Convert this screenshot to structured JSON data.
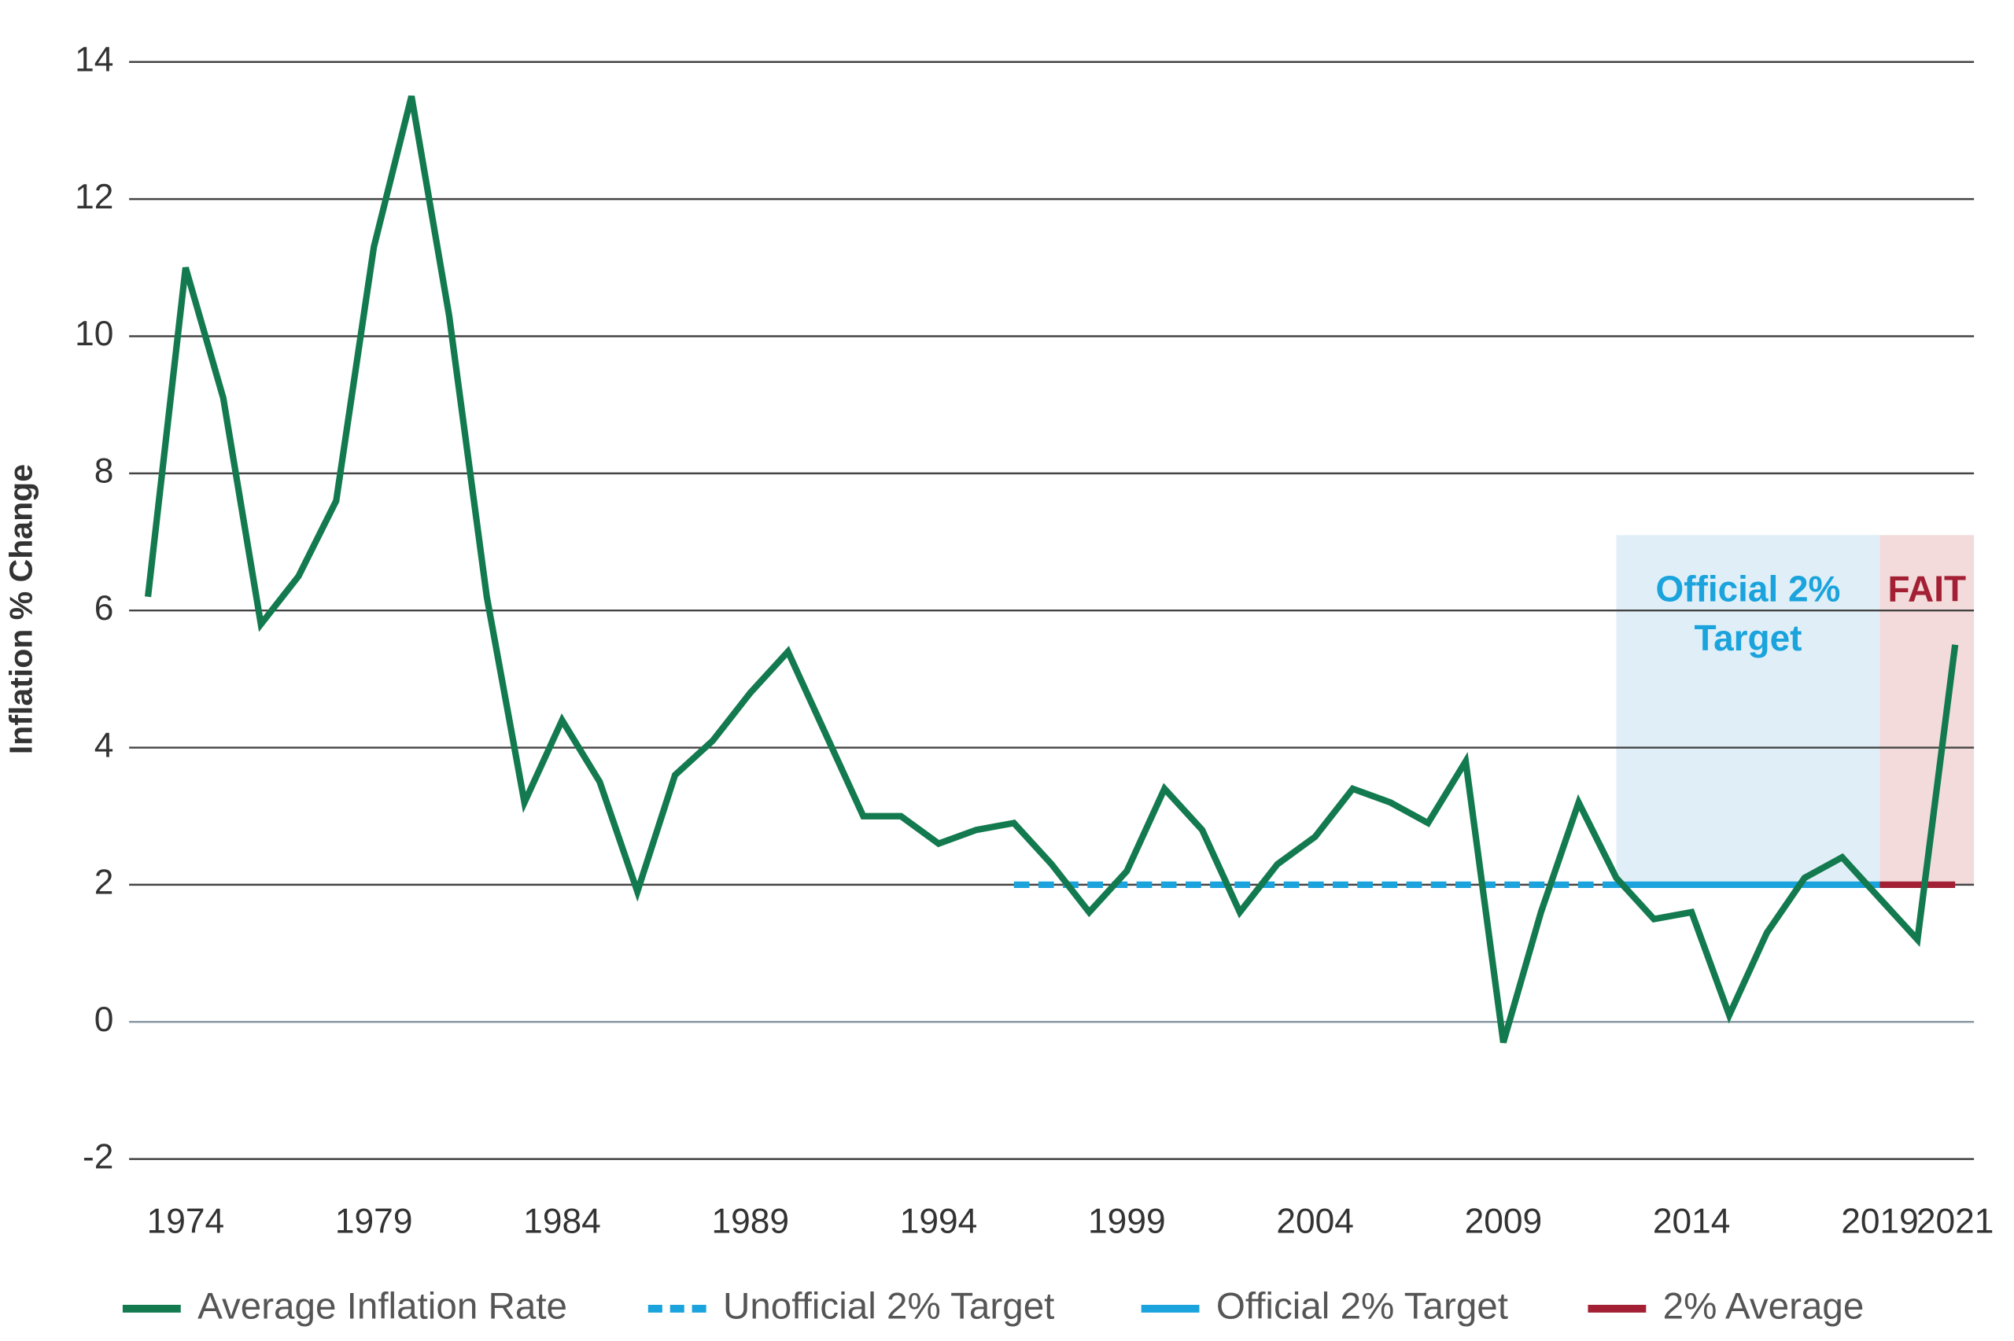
{
  "chart_data": {
    "type": "line",
    "ylabel": "Inflation % Change",
    "xlim": [
      1972.5,
      2021.5
    ],
    "ylim": [
      -2,
      14
    ],
    "yticks": [
      -2,
      0,
      2,
      4,
      6,
      8,
      10,
      12,
      14
    ],
    "xticks": [
      1974,
      1979,
      1984,
      1989,
      1994,
      1999,
      2004,
      2009,
      2014,
      2019,
      2021
    ],
    "grid": true,
    "regions": [
      {
        "x": [
          2012,
          2019
        ],
        "y": [
          2,
          7.1
        ],
        "color": "#e0eff7",
        "label": [
          "Official 2%",
          "Target"
        ],
        "label_color": "#1aa3dc"
      },
      {
        "x": [
          2019,
          2021.5
        ],
        "y": [
          2,
          7.1
        ],
        "color": "#f3dadb",
        "label": [
          "FAIT"
        ],
        "label_color": "#a31f34"
      }
    ],
    "series": [
      {
        "name": "Average Inflation Rate",
        "color": "#137a4f",
        "dash": false,
        "x": [
          1973,
          1974,
          1975,
          1976,
          1977,
          1978,
          1979,
          1980,
          1981,
          1982,
          1983,
          1984,
          1985,
          1986,
          1987,
          1988,
          1989,
          1990,
          1991,
          1992,
          1993,
          1994,
          1995,
          1996,
          1997,
          1998,
          1999,
          2000,
          2001,
          2002,
          2003,
          2004,
          2005,
          2006,
          2007,
          2008,
          2009,
          2010,
          2011,
          2012,
          2013,
          2014,
          2015,
          2016,
          2017,
          2018,
          2019,
          2020,
          2021
        ],
        "values": [
          6.2,
          11.0,
          9.1,
          5.8,
          6.5,
          7.6,
          11.3,
          13.5,
          10.3,
          6.2,
          3.2,
          4.4,
          3.5,
          1.9,
          3.6,
          4.1,
          4.8,
          5.4,
          4.2,
          3.0,
          3.0,
          2.6,
          2.8,
          2.9,
          2.3,
          1.6,
          2.2,
          3.4,
          2.8,
          1.6,
          2.3,
          2.7,
          3.4,
          3.2,
          2.9,
          3.8,
          -0.3,
          1.6,
          3.2,
          2.1,
          1.5,
          1.6,
          0.1,
          1.3,
          2.1,
          2.4,
          1.8,
          1.2,
          5.5
        ]
      },
      {
        "name": "Unofficial 2% Target",
        "color": "#1aa3dc",
        "dash": true,
        "x": [
          1996,
          2012
        ],
        "values": [
          2,
          2
        ]
      },
      {
        "name": "Official 2% Target",
        "color": "#1aa3dc",
        "dash": false,
        "x": [
          2012,
          2019
        ],
        "values": [
          2,
          2
        ]
      },
      {
        "name": "2% Average",
        "color": "#a31f34",
        "dash": false,
        "x": [
          2019,
          2021
        ],
        "values": [
          2,
          2
        ]
      }
    ]
  }
}
